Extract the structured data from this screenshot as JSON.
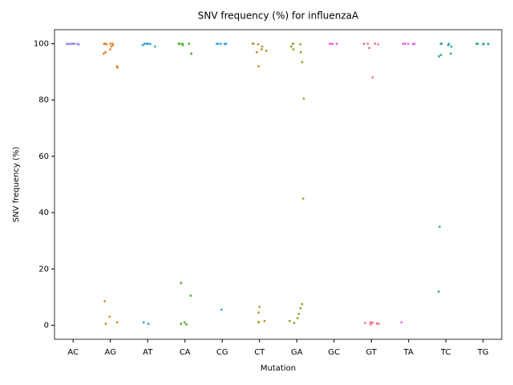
{
  "chart_data": {
    "type": "strip",
    "title": "SNV frequency (%) for influenzaA",
    "x_label": "Mutation",
    "y_label": "SNV frequency (%)",
    "categories": [
      "AC",
      "AG",
      "AT",
      "CA",
      "CG",
      "CT",
      "GA",
      "GC",
      "GT",
      "TA",
      "TC",
      "TG"
    ],
    "colors": [
      "#a48cf4",
      "#dc8932",
      "#39a7d0",
      "#50b131",
      "#3ba3ec",
      "#bb9832",
      "#97a431",
      "#f45ede",
      "#f77189",
      "#e866f4",
      "#36ada4",
      "#34ae91"
    ],
    "values": [
      [
        100,
        100,
        99.8,
        100,
        99.9,
        100,
        100,
        99.7,
        100,
        100,
        99.9,
        100
      ],
      [
        100,
        100,
        100,
        99.8,
        99.5,
        100,
        99,
        98,
        97,
        96.5,
        92,
        91.5,
        8.5,
        3,
        1,
        0.5
      ],
      [
        100,
        100,
        99.9,
        100,
        99.5,
        99,
        100,
        1,
        0.5
      ],
      [
        100,
        100,
        100,
        99.8,
        99.5,
        100,
        96.5,
        15,
        10.5,
        1,
        0.5,
        0.3
      ],
      [
        100,
        100,
        99.9,
        100,
        100,
        5.5
      ],
      [
        100,
        100,
        99.8,
        99,
        98,
        97.5,
        97,
        92,
        6.5,
        4.5,
        1.5,
        1.2,
        1
      ],
      [
        100,
        100,
        99.8,
        99,
        98,
        97,
        93.5,
        80.5,
        45,
        7.5,
        6,
        4,
        2.5,
        1.5,
        0.8
      ],
      [
        100,
        100,
        99.9,
        100
      ],
      [
        100,
        100,
        99.8,
        100,
        98.5,
        88,
        1,
        0.8,
        0.5,
        0.3,
        0.6,
        0.9
      ],
      [
        100,
        100,
        99.9,
        100,
        100,
        1
      ],
      [
        100,
        100,
        99.8,
        99.5,
        99,
        100,
        96.5,
        96,
        95.5,
        35,
        12
      ],
      [
        100,
        100,
        99.9,
        100,
        99.8,
        100
      ]
    ],
    "ylim": [
      -5,
      105
    ],
    "yticks": [
      0,
      20,
      40,
      60,
      80,
      100
    ]
  }
}
